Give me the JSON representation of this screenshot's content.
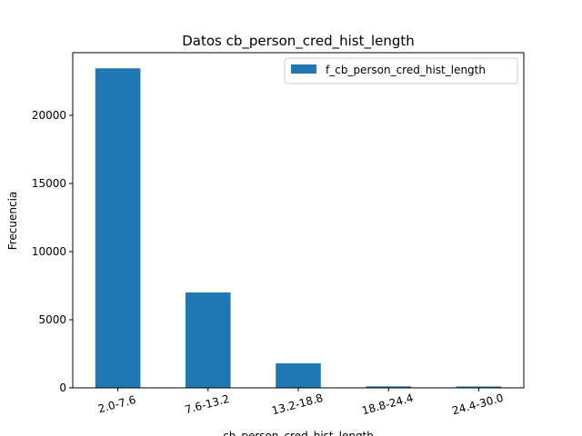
{
  "chart_data": {
    "type": "bar",
    "title": "Datos cb_person_cred_hist_length",
    "xlabel": "cb_person_cred_hist_length",
    "ylabel": "Frecuencia",
    "categories": [
      "2.0-7.6",
      "7.6-13.2",
      "13.2-18.8",
      "18.8-24.4",
      "24.4-30.0"
    ],
    "series": [
      {
        "name": "f_cb_person_cred_hist_length",
        "values": [
          23450,
          7000,
          1800,
          110,
          100
        ]
      }
    ],
    "ylim": [
      0,
      24600
    ],
    "yticks": [
      0,
      5000,
      10000,
      15000,
      20000
    ],
    "grid": false,
    "legend_position": "top-right",
    "colors": {
      "bar": "#1f77b4"
    }
  }
}
